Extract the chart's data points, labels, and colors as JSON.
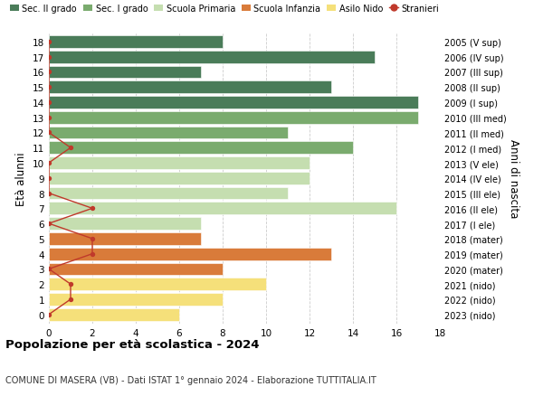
{
  "ages": [
    18,
    17,
    16,
    15,
    14,
    13,
    12,
    11,
    10,
    9,
    8,
    7,
    6,
    5,
    4,
    3,
    2,
    1,
    0
  ],
  "right_labels": [
    "2005 (V sup)",
    "2006 (IV sup)",
    "2007 (III sup)",
    "2008 (II sup)",
    "2009 (I sup)",
    "2010 (III med)",
    "2011 (II med)",
    "2012 (I med)",
    "2013 (V ele)",
    "2014 (IV ele)",
    "2015 (III ele)",
    "2016 (II ele)",
    "2017 (I ele)",
    "2018 (mater)",
    "2019 (mater)",
    "2020 (mater)",
    "2021 (nido)",
    "2022 (nido)",
    "2023 (nido)"
  ],
  "bar_values": [
    8,
    15,
    7,
    13,
    17,
    17,
    11,
    14,
    12,
    12,
    11,
    16,
    7,
    7,
    13,
    8,
    10,
    8,
    6
  ],
  "bar_colors": [
    "#4a7c59",
    "#4a7c59",
    "#4a7c59",
    "#4a7c59",
    "#4a7c59",
    "#7aab6e",
    "#7aab6e",
    "#7aab6e",
    "#c5deb0",
    "#c5deb0",
    "#c5deb0",
    "#c5deb0",
    "#c5deb0",
    "#d97b3a",
    "#d97b3a",
    "#d97b3a",
    "#f5e07a",
    "#f5e07a",
    "#f5e07a"
  ],
  "stranieri_values": [
    0,
    0,
    0,
    0,
    0,
    0,
    0,
    1,
    0,
    0,
    0,
    2,
    0,
    2,
    2,
    0,
    1,
    1,
    0
  ],
  "legend_labels": [
    "Sec. II grado",
    "Sec. I grado",
    "Scuola Primaria",
    "Scuola Infanzia",
    "Asilo Nido",
    "Stranieri"
  ],
  "legend_colors": [
    "#4a7c59",
    "#7aab6e",
    "#c5deb0",
    "#d97b3a",
    "#f5e07a",
    "#c0392b"
  ],
  "ylabel": "Età alunni",
  "right_ylabel": "Anni di nascita",
  "title": "Popolazione per età scolastica - 2024",
  "subtitle": "COMUNE DI MASERA (VB) - Dati ISTAT 1° gennaio 2024 - Elaborazione TUTTITALIA.IT",
  "xlim": [
    0,
    18
  ],
  "xticks": [
    0,
    2,
    4,
    6,
    8,
    10,
    12,
    14,
    16,
    18
  ],
  "background_color": "#ffffff",
  "grid_color": "#cccccc"
}
